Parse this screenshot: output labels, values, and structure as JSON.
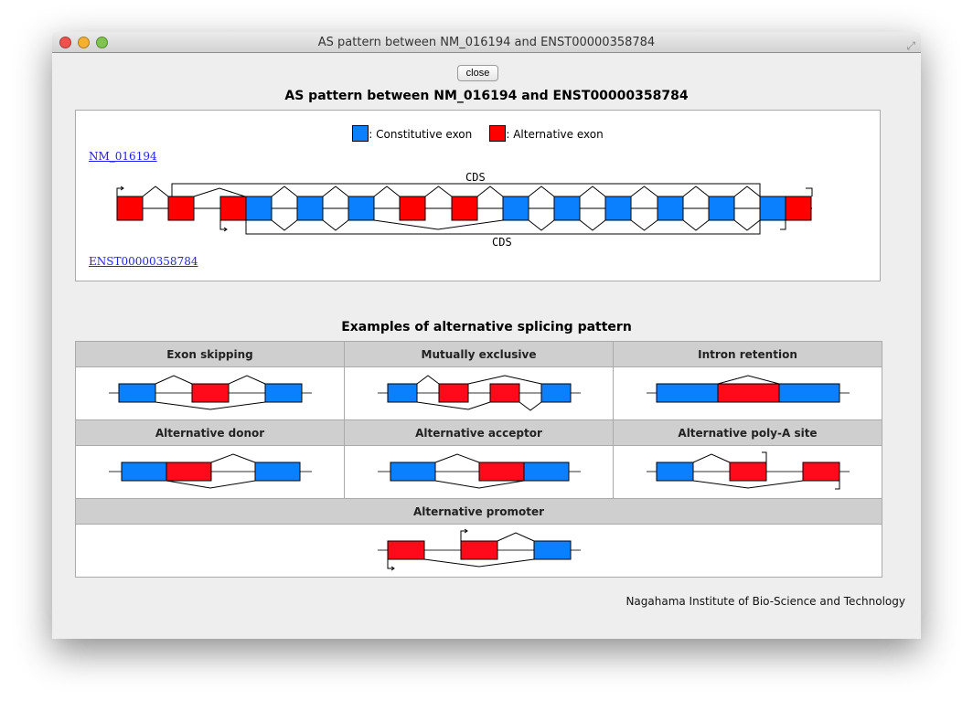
{
  "window": {
    "title": "AS pattern between NM_016194 and ENST00000358784"
  },
  "close_label": "close",
  "heading": "AS pattern between NM_016194 and ENST00000358784",
  "legend": {
    "constitutive": ": Constitutive exon",
    "alternative": ": Alternative exon",
    "constitutive_color": "#0a80ff",
    "alternative_color": "#ff0000"
  },
  "transcripts": {
    "top": "NM_016194",
    "bottom": "ENST00000358784",
    "cds_label_top": "CDS",
    "cds_label_bottom": "CDS"
  },
  "exons": [
    "alternative",
    "alternative",
    "alternative",
    "constitutive",
    "constitutive",
    "constitutive",
    "alternative",
    "alternative",
    "constitutive",
    "constitutive",
    "constitutive",
    "constitutive",
    "constitutive",
    "constitutive",
    "alternative"
  ],
  "examples": {
    "title": "Examples of alternative splicing pattern",
    "items": [
      "Exon skipping",
      "Mutually exclusive",
      "Intron retention",
      "Alternative donor",
      "Alternative acceptor",
      "Alternative poly-A site",
      "Alternative promoter"
    ]
  },
  "footer": "Nagahama Institute of Bio-Science and Technology"
}
